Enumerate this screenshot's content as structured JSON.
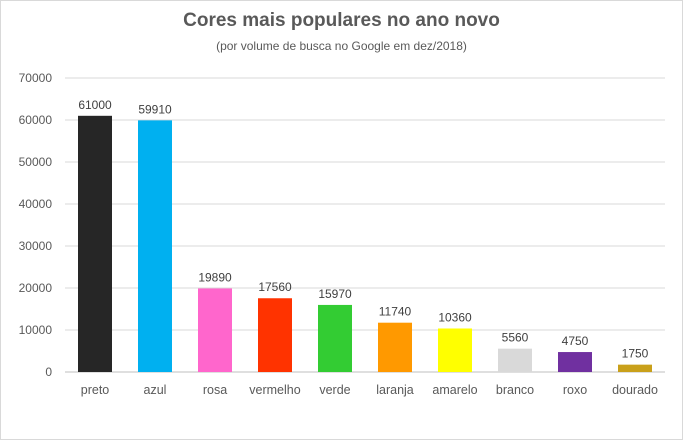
{
  "chart_data": {
    "type": "bar",
    "title": "Cores mais populares no ano novo",
    "subtitle": "(por volume de busca no Google em dez/2018)",
    "xlabel": "",
    "ylabel": "",
    "ylim": [
      0,
      70000
    ],
    "yticks": [
      "0",
      "10000",
      "20000",
      "30000",
      "40000",
      "50000",
      "60000",
      "70000"
    ],
    "grid": true,
    "legend": "none",
    "categories": [
      "preto",
      "azul",
      "rosa",
      "vermelho",
      "verde",
      "laranja",
      "amarelo",
      "branco",
      "roxo",
      "dourado"
    ],
    "values": [
      61000,
      59910,
      19890,
      17560,
      15970,
      11740,
      10360,
      5560,
      4750,
      1750
    ],
    "data_labels": [
      "61000",
      "59910",
      "19890",
      "17560",
      "15970",
      "11740",
      "10360",
      "5560",
      "4750",
      "1750"
    ],
    "colors": [
      "#262626",
      "#00b0f0",
      "#ff66cc",
      "#ff3300",
      "#33cc33",
      "#ff9900",
      "#ffff00",
      "#d9d9d9",
      "#7030a0",
      "#c9a01a"
    ]
  }
}
